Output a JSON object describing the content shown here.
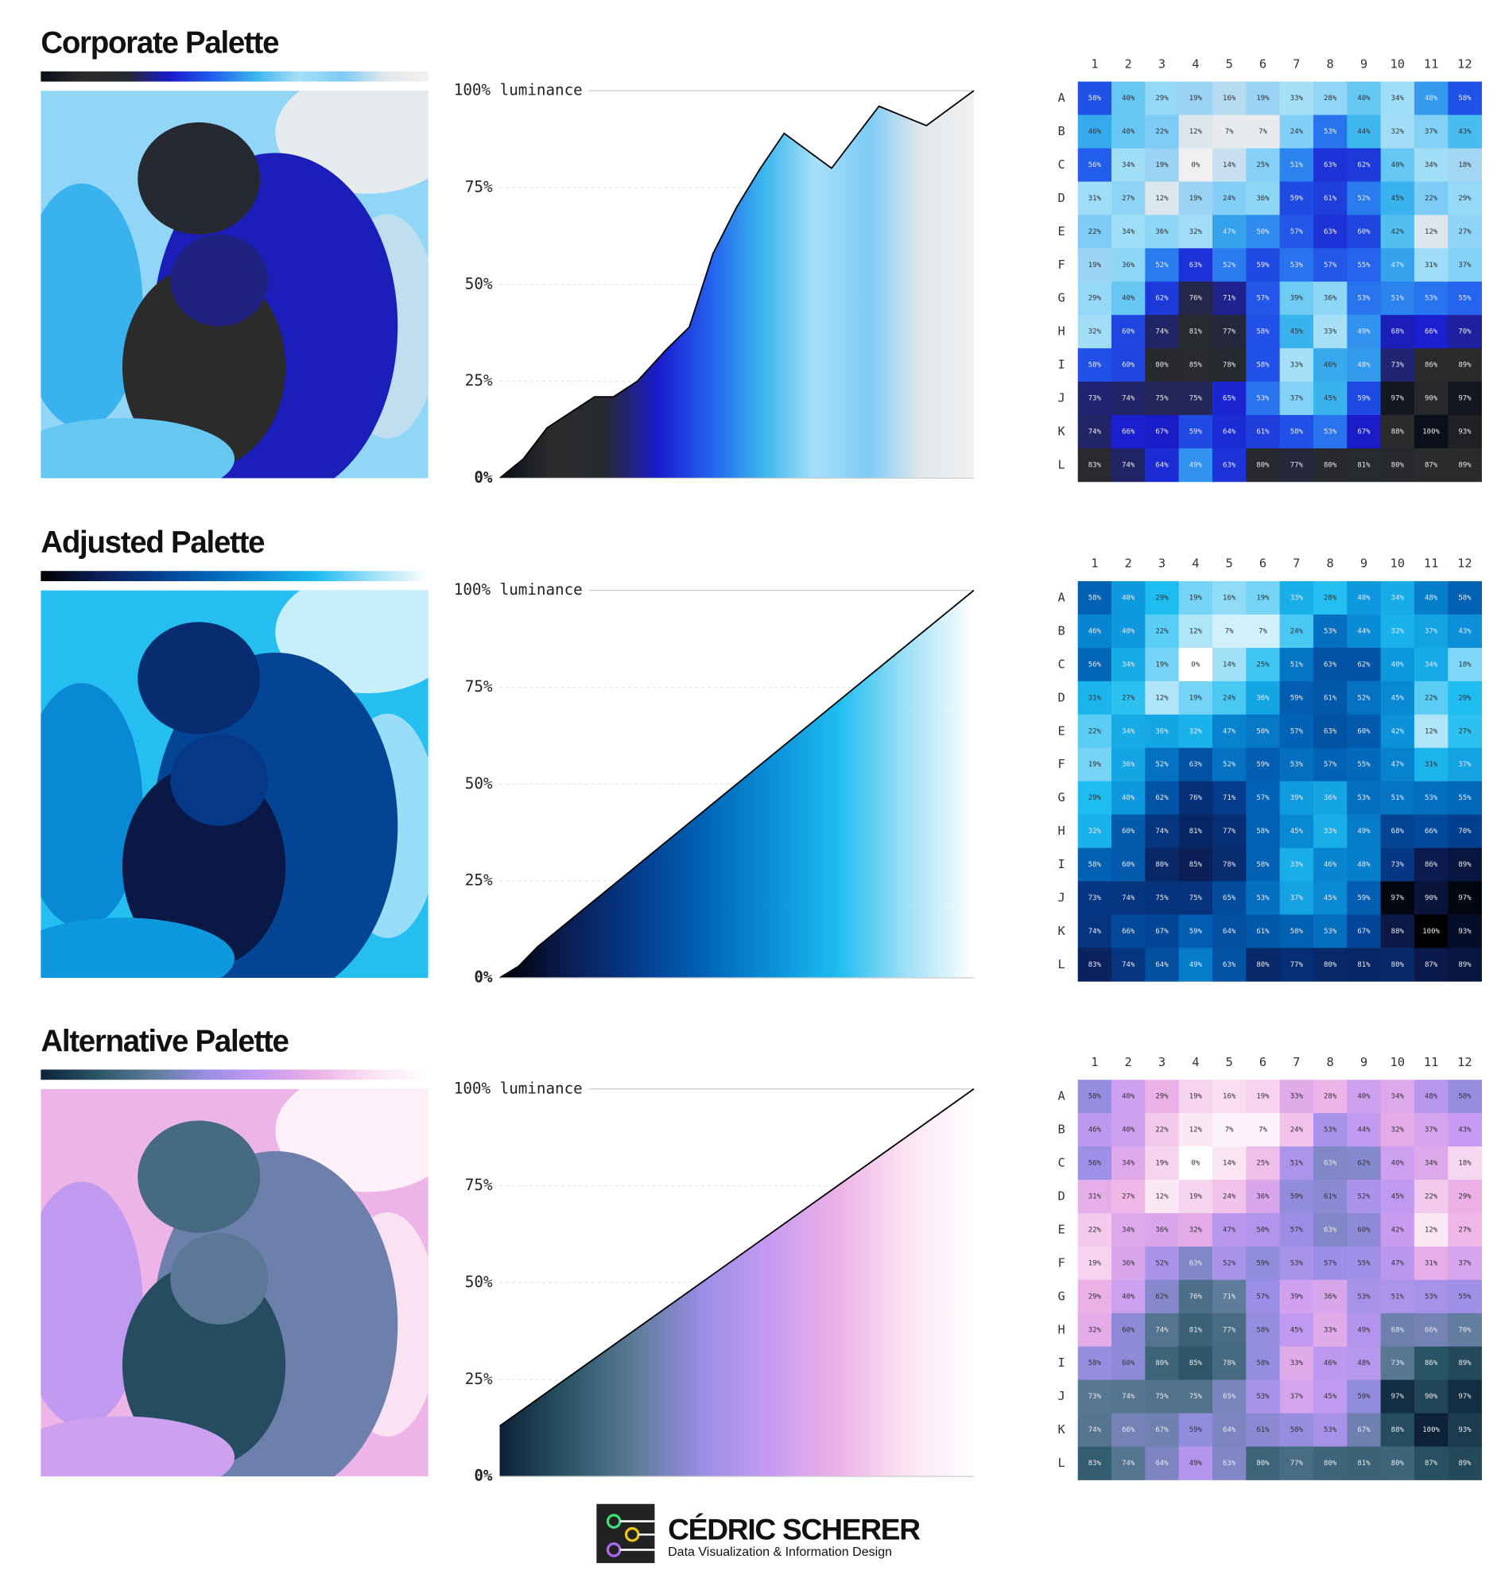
{
  "chart_data": [
    {
      "type": "area",
      "title": "Corporate Palette",
      "palette": [
        "#0b0f1c",
        "#2b2b2b",
        "#262930",
        "#1a1ccc",
        "#2360ee",
        "#3ab6ee",
        "#a7e0f8",
        "#7ccbf6",
        "#e3e8ec",
        "#f0f0f0"
      ],
      "x": [
        0,
        5,
        10,
        20,
        24,
        29,
        35,
        40,
        45,
        50,
        55,
        60,
        70,
        80,
        90,
        100
      ],
      "series": [
        {
          "color": "#000000",
          "values": [
            0,
            5,
            13,
            21,
            21,
            25,
            33,
            39,
            58,
            70,
            80,
            89,
            80,
            96,
            91,
            100
          ]
        }
      ],
      "xlim": [
        0,
        100
      ],
      "ylim": [
        0,
        100
      ],
      "yticks": [
        {
          "value": 0,
          "label": "0%"
        },
        {
          "value": 25,
          "label": "25%"
        },
        {
          "value": 50,
          "label": "50%"
        },
        {
          "value": 75,
          "label": "75%"
        },
        {
          "value": 100,
          "label": "100% luminance"
        }
      ],
      "grid": true
    },
    {
      "type": "area",
      "title": "Adjusted Palette",
      "palette": [
        "#000000",
        "#0b1c52",
        "#053a8a",
        "#0062b4",
        "#0a8fd8",
        "#1fbdf0",
        "#9fe0f8",
        "#ffffff"
      ],
      "x": [
        0,
        4,
        8,
        100
      ],
      "series": [
        {
          "color": "#000000",
          "values": [
            0,
            3,
            8,
            100
          ]
        }
      ],
      "xlim": [
        0,
        100
      ],
      "ylim": [
        0,
        100
      ],
      "yticks": [
        {
          "value": 0,
          "label": "0%"
        },
        {
          "value": 25,
          "label": "25%"
        },
        {
          "value": 50,
          "label": "50%"
        },
        {
          "value": 75,
          "label": "75%"
        },
        {
          "value": 100,
          "label": "100% luminance"
        }
      ],
      "grid": true
    },
    {
      "type": "area",
      "title": "Alternative Palette",
      "palette": [
        "#0d2238",
        "#2a5566",
        "#5d7b99",
        "#9a8ee6",
        "#c79bf2",
        "#ecb2e6",
        "#fbe4f3",
        "#ffffff"
      ],
      "x": [
        0,
        100
      ],
      "series": [
        {
          "color": "#000000",
          "values": [
            13,
            100
          ]
        }
      ],
      "xlim": [
        0,
        100
      ],
      "ylim": [
        0,
        100
      ],
      "yticks": [
        {
          "value": 0,
          "label": "0%"
        },
        {
          "value": 25,
          "label": "25%"
        },
        {
          "value": 50,
          "label": "50%"
        },
        {
          "value": 75,
          "label": "75%"
        },
        {
          "value": 100,
          "label": "100% luminance"
        }
      ],
      "grid": true
    }
  ],
  "grid": {
    "columns": [
      "1",
      "2",
      "3",
      "4",
      "5",
      "6",
      "7",
      "8",
      "9",
      "10",
      "11",
      "12"
    ],
    "rows": [
      "A",
      "B",
      "C",
      "D",
      "E",
      "F",
      "G",
      "H",
      "I",
      "J",
      "K",
      "L"
    ],
    "values": [
      [
        58,
        40,
        29,
        19,
        16,
        19,
        33,
        28,
        40,
        34,
        48,
        58
      ],
      [
        46,
        40,
        22,
        12,
        7,
        7,
        24,
        53,
        44,
        32,
        37,
        43
      ],
      [
        56,
        34,
        19,
        0,
        14,
        25,
        51,
        63,
        62,
        40,
        34,
        18
      ],
      [
        31,
        27,
        12,
        19,
        24,
        36,
        59,
        61,
        52,
        45,
        22,
        29
      ],
      [
        22,
        34,
        36,
        32,
        47,
        50,
        57,
        63,
        60,
        42,
        12,
        27
      ],
      [
        19,
        36,
        52,
        63,
        52,
        59,
        53,
        57,
        55,
        47,
        31,
        37
      ],
      [
        29,
        40,
        62,
        76,
        71,
        57,
        39,
        36,
        53,
        51,
        53,
        55
      ],
      [
        32,
        60,
        74,
        81,
        77,
        58,
        45,
        33,
        49,
        68,
        66,
        70
      ],
      [
        58,
        60,
        80,
        85,
        78,
        58,
        33,
        46,
        48,
        73,
        86,
        89
      ],
      [
        73,
        74,
        75,
        75,
        65,
        53,
        37,
        45,
        59,
        97,
        90,
        97
      ],
      [
        74,
        66,
        67,
        59,
        64,
        61,
        58,
        53,
        67,
        88,
        100,
        93
      ],
      [
        83,
        74,
        64,
        49,
        63,
        80,
        77,
        80,
        81,
        80,
        87,
        89
      ]
    ],
    "value_labels": [
      [
        "58%",
        "40%",
        "29%",
        "19%",
        "16%",
        "19%",
        "33%",
        "28%",
        "40%",
        "34%",
        "48%",
        "58%"
      ],
      [
        "46%",
        "40%",
        "22%",
        "12%",
        "7%",
        "7%",
        "24%",
        "53%",
        "44%",
        "32%",
        "37%",
        "43%"
      ],
      [
        "56%",
        "34%",
        "19%",
        "0%",
        "14%",
        "25%",
        "51%",
        "63%",
        "62%",
        "40%",
        "34%",
        "18%"
      ],
      [
        "31%",
        "27%",
        "12%",
        "19%",
        "24%",
        "36%",
        "59%",
        "61%",
        "52%",
        "45%",
        "22%",
        "29%"
      ],
      [
        "22%",
        "34%",
        "36%",
        "32%",
        "47%",
        "50%",
        "57%",
        "63%",
        "60%",
        "42%",
        "12%",
        "27%"
      ],
      [
        "19%",
        "36%",
        "52%",
        "63%",
        "52%",
        "59%",
        "53%",
        "57%",
        "55%",
        "47%",
        "31%",
        "37%"
      ],
      [
        "29%",
        "40%",
        "62%",
        "76%",
        "71%",
        "57%",
        "39%",
        "36%",
        "53%",
        "51%",
        "53%",
        "55%"
      ],
      [
        "32%",
        "60%",
        "74%",
        "81%",
        "77%",
        "58%",
        "45%",
        "33%",
        "49%",
        "68%",
        "66%",
        "70%"
      ],
      [
        "58%",
        "60%",
        "80%",
        "85%",
        "78%",
        "58%",
        "33%",
        "46%",
        "48%",
        "73%",
        "86%",
        "89%"
      ],
      [
        "73%",
        "74%",
        "75%",
        "75%",
        "65%",
        "53%",
        "37%",
        "45%",
        "59%",
        "97%",
        "90%",
        "97%"
      ],
      [
        "74%",
        "66%",
        "67%",
        "59%",
        "64%",
        "61%",
        "58%",
        "53%",
        "67%",
        "88%",
        "100%",
        "93%"
      ],
      [
        "83%",
        "74%",
        "64%",
        "49%",
        "63%",
        "80%",
        "77%",
        "80%",
        "81%",
        "80%",
        "87%",
        "89%"
      ]
    ]
  },
  "footer": {
    "name": "CÉDRIC SCHERER",
    "tagline": "Data Visualization & Information Design"
  }
}
